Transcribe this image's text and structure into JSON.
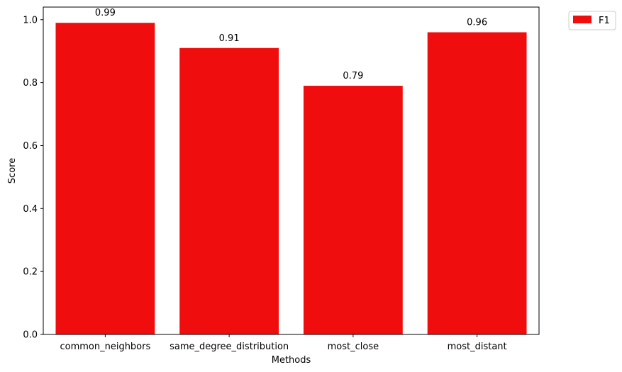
{
  "chart_data": {
    "type": "bar",
    "categories": [
      "common_neighbors",
      "same_degree_distribution",
      "most_close",
      "most_distant"
    ],
    "series": [
      {
        "name": "F1",
        "values": [
          0.99,
          0.91,
          0.79,
          0.96
        ],
        "color": "#f00d0d"
      }
    ],
    "data_labels": [
      "0.99",
      "0.91",
      "0.79",
      "0.96"
    ],
    "xlabel": "Methods",
    "ylabel": "Score",
    "ylim": [
      0,
      1.04
    ],
    "yticks": [
      0.0,
      0.2,
      0.4,
      0.6,
      0.8,
      1.0
    ],
    "ytick_labels": [
      "0.0",
      "0.2",
      "0.4",
      "0.6",
      "0.8",
      "1.0"
    ],
    "grid": false,
    "legend_position": "outside-top-right"
  }
}
